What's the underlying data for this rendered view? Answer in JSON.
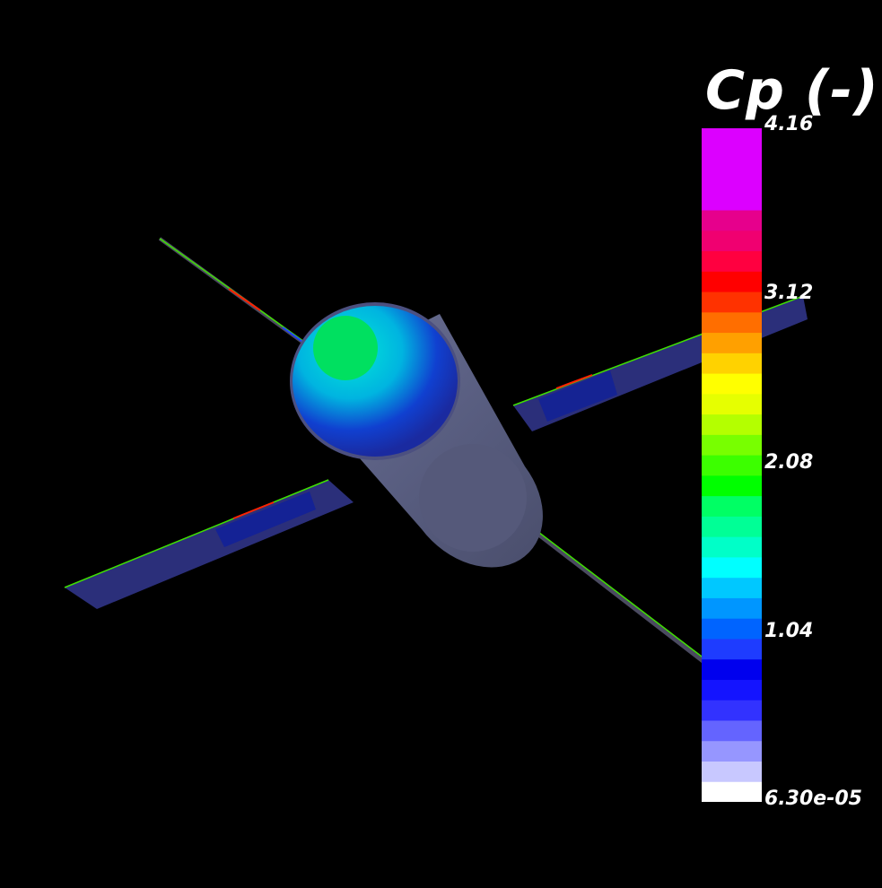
{
  "legend": {
    "title": "Cp (-)",
    "ticks": [
      "4.16",
      "3.12",
      "2.08",
      "1.04",
      "6.30e-05"
    ],
    "range": [
      6.3e-05,
      4.16
    ],
    "colors": [
      "#ffffff",
      "#c8c8ff",
      "#9696ff",
      "#6464ff",
      "#3232ff",
      "#1414ff",
      "#0000ee",
      "#1e3cff",
      "#0064ff",
      "#0096ff",
      "#00c8ff",
      "#00ffff",
      "#00ffc8",
      "#00ff96",
      "#00ff64",
      "#00ff00",
      "#3cff00",
      "#78ff00",
      "#b4ff00",
      "#e6ff00",
      "#ffff00",
      "#ffd200",
      "#ffa000",
      "#ff6e00",
      "#ff3200",
      "#ff0000",
      "#ff0040",
      "#f00070",
      "#e6008c",
      "#dc00ff",
      "#dc00ff",
      "#dc00ff",
      "#dc00ff"
    ]
  },
  "scene": {
    "body_color": "#5a5f82",
    "panel_color": "#2b2f7a",
    "nose_color": "#00e060",
    "background": "#000000"
  }
}
